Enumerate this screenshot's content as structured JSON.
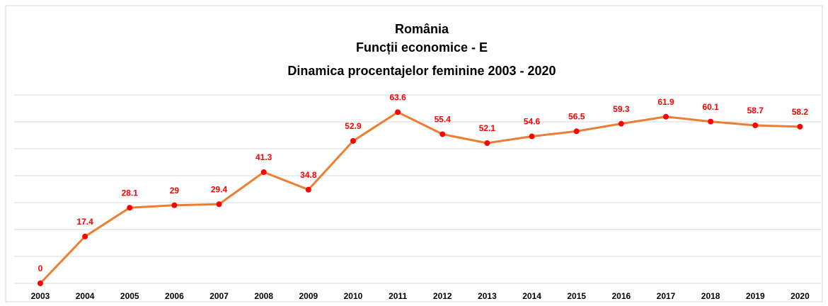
{
  "chart_data": {
    "type": "line",
    "title": [
      "România",
      "Funcții economice - E",
      "Dinamica procentajelor feminine 2003 - 2020"
    ],
    "categories": [
      "2003",
      "2004",
      "2005",
      "2006",
      "2007",
      "2008",
      "2009",
      "2010",
      "2011",
      "2012",
      "2013",
      "2014",
      "2015",
      "2016",
      "2017",
      "2018",
      "2019",
      "2020"
    ],
    "series": [
      {
        "color": "#ed7d31",
        "marker_color": "#ff0000",
        "values": [
          0,
          17.4,
          28.1,
          29,
          29.4,
          41.3,
          34.8,
          52.9,
          63.6,
          55.4,
          52.1,
          54.6,
          56.5,
          59.3,
          61.9,
          60.1,
          58.7,
          58.2
        ]
      }
    ],
    "ylim": [
      0,
      70
    ],
    "yticks": [
      0,
      10,
      20,
      30,
      40,
      50,
      60,
      70
    ],
    "grid": true
  }
}
